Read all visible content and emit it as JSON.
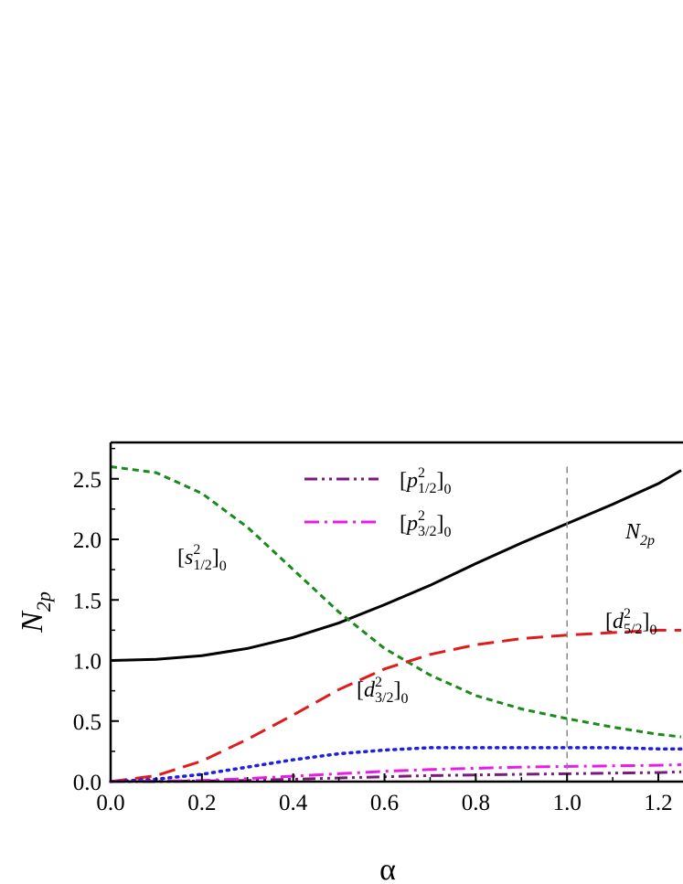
{
  "chart_data": {
    "type": "line",
    "xlabel": "α",
    "ylabel": "N",
    "ylabel_sub": "2p",
    "xlim": [
      0.0,
      1.25
    ],
    "ylim": [
      0.0,
      2.8
    ],
    "xticks": [
      "0.0",
      "0.2",
      "0.4",
      "0.6",
      "0.8",
      "1.0",
      "1.2"
    ],
    "yticks": [
      "0.0",
      "0.5",
      "1.0",
      "1.5",
      "2.0",
      "2.5"
    ],
    "grid": false,
    "reference_line": {
      "x": 1.0,
      "style": "dashed",
      "color": "#888888"
    },
    "legend": {
      "position": "top-center",
      "entries": [
        {
          "text_main": "[p",
          "text_sub": "1/2",
          "text_sup": "2",
          "text_tail": "]",
          "text_tail_sub": "0",
          "series_index": 4
        },
        {
          "text_main": "[p",
          "text_sub": "3/2",
          "text_sup": "2",
          "text_tail": "]",
          "text_tail_sub": "0",
          "series_index": 5
        }
      ]
    },
    "series": [
      {
        "id": "N2p",
        "label_main": "N",
        "label_sub": "2p",
        "color": "#000000",
        "dash": "solid",
        "x": [
          0.0,
          0.1,
          0.2,
          0.3,
          0.4,
          0.5,
          0.6,
          0.7,
          0.8,
          0.9,
          1.0,
          1.1,
          1.2,
          1.25
        ],
        "y": [
          1.0,
          1.01,
          1.04,
          1.1,
          1.19,
          1.31,
          1.46,
          1.62,
          1.8,
          1.97,
          2.13,
          2.29,
          2.46,
          2.57
        ]
      },
      {
        "id": "s12",
        "label_main": "[s",
        "label_sub": "1/2",
        "label_sup": "2",
        "label_tail": "]",
        "label_tail_sub": "0",
        "color": "#1a8a1a",
        "dash": "short",
        "x": [
          0.0,
          0.1,
          0.2,
          0.3,
          0.4,
          0.5,
          0.6,
          0.7,
          0.8,
          0.9,
          1.0,
          1.1,
          1.2,
          1.25
        ],
        "y": [
          2.6,
          2.55,
          2.38,
          2.1,
          1.75,
          1.4,
          1.1,
          0.88,
          0.71,
          0.6,
          0.52,
          0.45,
          0.39,
          0.37
        ]
      },
      {
        "id": "d52",
        "label_main": "[d",
        "label_sub": "5/2",
        "label_sup": "2",
        "label_tail": "]",
        "label_tail_sub": "0",
        "color": "#e01b1b",
        "dash": "long",
        "x": [
          0.0,
          0.1,
          0.2,
          0.3,
          0.4,
          0.5,
          0.6,
          0.7,
          0.8,
          0.9,
          1.0,
          1.1,
          1.2,
          1.25
        ],
        "y": [
          0.0,
          0.05,
          0.17,
          0.35,
          0.55,
          0.76,
          0.93,
          1.05,
          1.13,
          1.18,
          1.21,
          1.23,
          1.25,
          1.25
        ]
      },
      {
        "id": "d32",
        "label_main": "[d",
        "label_sub": "3/2",
        "label_sup": "2",
        "label_tail": "]",
        "label_tail_sub": "0",
        "color": "#1f1fe0",
        "dash": "dot",
        "x": [
          0.0,
          0.1,
          0.2,
          0.3,
          0.4,
          0.5,
          0.6,
          0.7,
          0.8,
          0.9,
          1.0,
          1.1,
          1.2,
          1.25
        ],
        "y": [
          0.0,
          0.02,
          0.06,
          0.12,
          0.18,
          0.23,
          0.26,
          0.28,
          0.28,
          0.28,
          0.28,
          0.28,
          0.27,
          0.27
        ]
      },
      {
        "id": "p12",
        "color": "#7a1a7a",
        "dash": "dashdotdot",
        "x": [
          0.0,
          0.1,
          0.2,
          0.3,
          0.4,
          0.5,
          0.6,
          0.7,
          0.8,
          0.9,
          1.0,
          1.1,
          1.2,
          1.25
        ],
        "y": [
          0.0,
          0.0,
          0.005,
          0.01,
          0.02,
          0.03,
          0.04,
          0.05,
          0.055,
          0.06,
          0.065,
          0.07,
          0.075,
          0.08
        ]
      },
      {
        "id": "p32",
        "color": "#e81be8",
        "dash": "dashdot",
        "x": [
          0.0,
          0.1,
          0.2,
          0.3,
          0.4,
          0.5,
          0.6,
          0.7,
          0.8,
          0.9,
          1.0,
          1.1,
          1.2,
          1.25
        ],
        "y": [
          0.0,
          0.003,
          0.01,
          0.025,
          0.045,
          0.065,
          0.085,
          0.1,
          0.11,
          0.12,
          0.125,
          0.13,
          0.135,
          0.14
        ]
      }
    ]
  }
}
